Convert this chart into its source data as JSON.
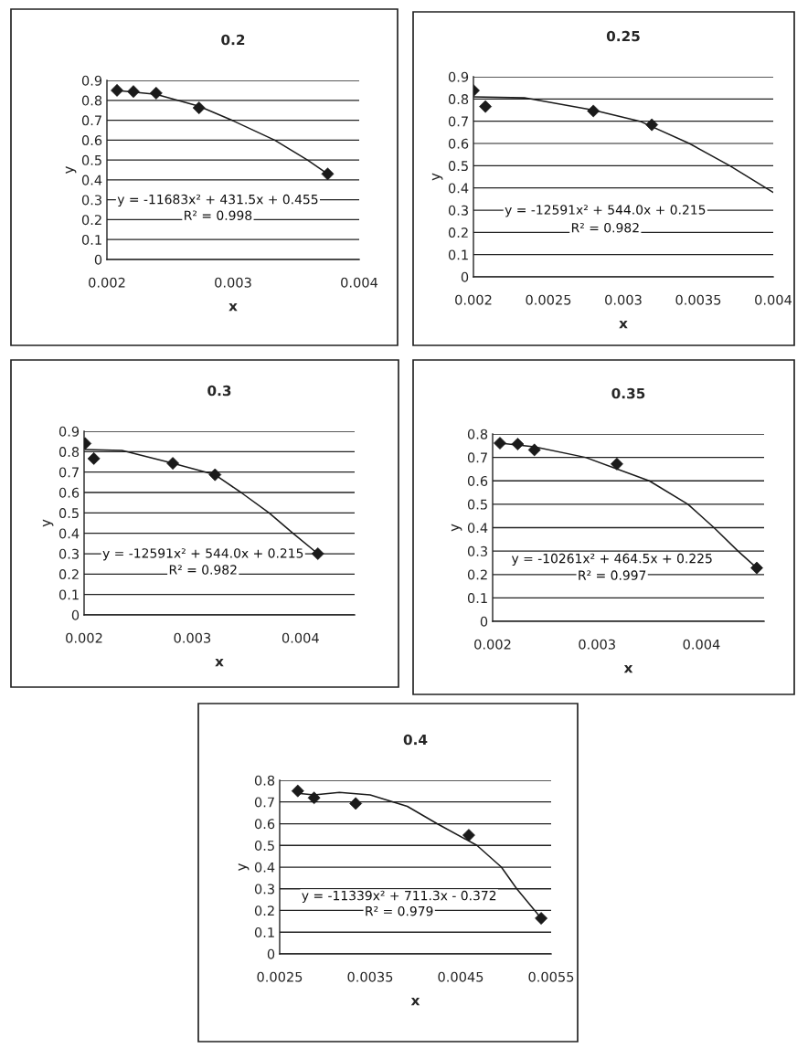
{
  "chart_data": [
    {
      "type": "scatter",
      "title": "0.2",
      "xlabel": "x",
      "ylabel": "y",
      "xlim": [
        0.002,
        0.004
      ],
      "xticks": [
        0.002,
        0.003,
        0.004
      ],
      "ylim": [
        0,
        0.9
      ],
      "yticks": [
        0,
        0.1,
        0.2,
        0.3,
        0.4,
        0.5,
        0.6,
        0.7,
        0.8,
        0.9
      ],
      "grid": "y",
      "legend": false,
      "series": [
        {
          "marker": "diamond",
          "color": "#1a1a1a",
          "x": [
            0.00208,
            0.00221,
            0.00239,
            0.00273,
            0.00375
          ],
          "values": [
            0.85,
            0.844,
            0.836,
            0.762,
            0.43
          ]
        },
        {
          "type": "line",
          "color": "#1a1a1a",
          "x": [
            0.00208,
            0.00239,
            0.00273,
            0.00299,
            0.00333,
            0.00359,
            0.00375
          ],
          "values": [
            0.85,
            0.83,
            0.77,
            0.7,
            0.6,
            0.5,
            0.43
          ]
        }
      ],
      "annotations": [
        "y = -11683x² + 431.5x + 0.455",
        "R² = 0.998"
      ]
    },
    {
      "type": "scatter",
      "title": "0.25",
      "xlabel": "x",
      "ylabel": "y",
      "xlim": [
        0.002,
        0.004
      ],
      "xticks": [
        0.002,
        0.0025,
        0.003,
        0.0035,
        0.004
      ],
      "ylim": [
        0,
        0.9
      ],
      "yticks": [
        0,
        0.1,
        0.2,
        0.3,
        0.4,
        0.5,
        0.6,
        0.7,
        0.8,
        0.9
      ],
      "grid": "y",
      "legend": false,
      "series": [
        {
          "marker": "diamond",
          "color": "#1a1a1a",
          "x": [
            0.002,
            0.00208,
            0.0028,
            0.00319
          ],
          "values": [
            0.838,
            0.766,
            0.746,
            0.684
          ]
        },
        {
          "type": "line",
          "color": "#1a1a1a",
          "x": [
            0.002,
            0.00234,
            0.0028,
            0.00311,
            0.00344,
            0.00371,
            0.004
          ],
          "values": [
            0.81,
            0.805,
            0.75,
            0.7,
            0.6,
            0.5,
            0.38
          ]
        }
      ],
      "annotations": [
        "y = -12591x² + 544.0x + 0.215",
        "R² = 0.982"
      ]
    },
    {
      "type": "scatter",
      "title": "0.3",
      "xlabel": "x",
      "ylabel": "y",
      "xlim": [
        0.002,
        0.0045
      ],
      "xticks": [
        0.002,
        0.003,
        0.004
      ],
      "ylim": [
        0,
        0.9
      ],
      "yticks": [
        0,
        0.1,
        0.2,
        0.3,
        0.4,
        0.5,
        0.6,
        0.7,
        0.8,
        0.9
      ],
      "grid": "y",
      "legend": false,
      "series": [
        {
          "marker": "diamond",
          "color": "#1a1a1a",
          "x": [
            0.00201,
            0.00209,
            0.00282,
            0.00321,
            0.00416
          ],
          "values": [
            0.84,
            0.766,
            0.743,
            0.687,
            0.3
          ]
        },
        {
          "type": "line",
          "color": "#1a1a1a",
          "x": [
            0.00201,
            0.00235,
            0.00282,
            0.00321,
            0.00345,
            0.00371,
            0.00393,
            0.00416
          ],
          "values": [
            0.81,
            0.806,
            0.743,
            0.687,
            0.6,
            0.5,
            0.4,
            0.3
          ]
        }
      ],
      "annotations": [
        "y = -12591x² + 544.0x + 0.215",
        "R² = 0.982"
      ]
    },
    {
      "type": "scatter",
      "title": "0.35",
      "xlabel": "x",
      "ylabel": "y",
      "xlim": [
        0.002,
        0.0046
      ],
      "xticks": [
        0.002,
        0.003,
        0.004
      ],
      "ylim": [
        0,
        0.8
      ],
      "yticks": [
        0,
        0.1,
        0.2,
        0.3,
        0.4,
        0.5,
        0.6,
        0.7,
        0.8
      ],
      "grid": "y",
      "legend": false,
      "series": [
        {
          "marker": "diamond",
          "color": "#1a1a1a",
          "x": [
            0.00207,
            0.00224,
            0.0024,
            0.00319,
            0.00453
          ],
          "values": [
            0.761,
            0.757,
            0.732,
            0.672,
            0.228
          ]
        },
        {
          "type": "line",
          "color": "#1a1a1a",
          "x": [
            0.00207,
            0.0024,
            0.00289,
            0.0035,
            0.00387,
            0.00412,
            0.00435,
            0.00453
          ],
          "values": [
            0.761,
            0.745,
            0.7,
            0.6,
            0.5,
            0.4,
            0.3,
            0.228
          ]
        }
      ],
      "annotations": [
        "y = -10261x² + 464.5x + 0.225",
        "R² = 0.997"
      ]
    },
    {
      "type": "scatter",
      "title": "0.4",
      "xlabel": "x",
      "ylabel": "y",
      "xlim": [
        0.0025,
        0.0055
      ],
      "xticks": [
        0.0025,
        0.0035,
        0.0045,
        0.0055
      ],
      "ylim": [
        0,
        0.8
      ],
      "yticks": [
        0,
        0.1,
        0.2,
        0.3,
        0.4,
        0.5,
        0.6,
        0.7,
        0.8
      ],
      "grid": "y",
      "legend": false,
      "series": [
        {
          "marker": "diamond",
          "color": "#1a1a1a",
          "x": [
            0.0027,
            0.00288,
            0.00334,
            0.00459,
            0.00539
          ],
          "values": [
            0.751,
            0.719,
            0.693,
            0.547,
            0.164
          ]
        },
        {
          "type": "line",
          "color": "#1a1a1a",
          "x": [
            0.0027,
            0.00288,
            0.00316,
            0.0035,
            0.00391,
            0.00424,
            0.00468,
            0.00495,
            0.00512,
            0.00539
          ],
          "values": [
            0.74,
            0.733,
            0.744,
            0.733,
            0.68,
            0.6,
            0.5,
            0.4,
            0.3,
            0.164
          ]
        }
      ],
      "annotations": [
        "y = -11339x² + 711.3x - 0.372",
        "R² = 0.979"
      ]
    }
  ]
}
